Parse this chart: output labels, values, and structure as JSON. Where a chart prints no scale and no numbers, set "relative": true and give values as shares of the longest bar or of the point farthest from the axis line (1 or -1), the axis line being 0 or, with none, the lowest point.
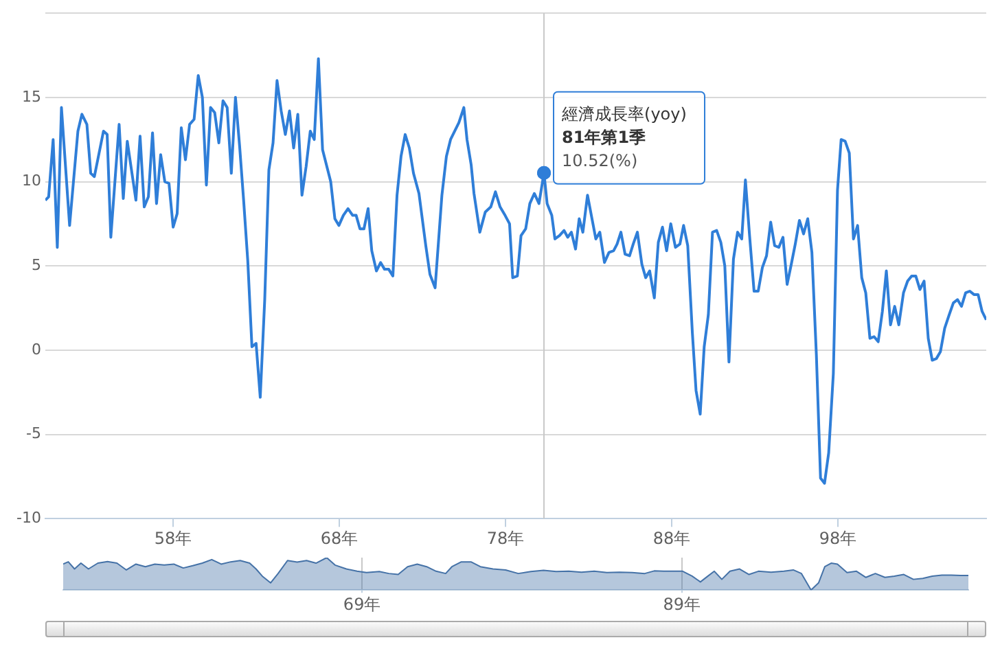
{
  "chart_data": [
    {
      "type": "line",
      "x": [
        50.31,
        50.51,
        50.78,
        51.03,
        51.28,
        51.77,
        52.27,
        52.51,
        52.81,
        53.04,
        53.26,
        53.81,
        54.03,
        54.25,
        54.75,
        55.0,
        55.24,
        55.76,
        56.01,
        56.26,
        56.51,
        56.76,
        57.0,
        57.25,
        57.5,
        57.75,
        58.0,
        58.24,
        58.49,
        58.74,
        58.99,
        59.26,
        59.51,
        59.76,
        60.0,
        60.25,
        60.5,
        60.75,
        61.0,
        61.25,
        61.5,
        61.75,
        62.0,
        62.24,
        62.49,
        62.74,
        62.99,
        63.24,
        63.51,
        63.76,
        64.01,
        64.25,
        64.5,
        64.75,
        65.0,
        65.25,
        65.5,
        65.75,
        66.0,
        66.25,
        66.49,
        66.74,
        66.99,
        67.48,
        67.73,
        67.97,
        68.24,
        68.52,
        68.8,
        69.01,
        69.24,
        69.48,
        69.73,
        69.95,
        70.23,
        70.48,
        70.72,
        70.97,
        71.22,
        71.47,
        71.71,
        71.96,
        72.21,
        72.46,
        72.79,
        73.2,
        73.45,
        73.76,
        74.17,
        74.44,
        74.69,
        74.94,
        75.19,
        75.49,
        75.68,
        75.93,
        76.1,
        76.45,
        76.78,
        77.11,
        77.39,
        77.67,
        77.97,
        78.24,
        78.43,
        78.71,
        78.93,
        79.21,
        79.46,
        79.73,
        80.01,
        80.31,
        80.5,
        80.78,
        80.97,
        81.24,
        81.52,
        81.74,
        81.96,
        82.21,
        82.43,
        82.65,
        82.93,
        83.18,
        83.43,
        83.67,
        83.95,
        84.22,
        84.5,
        84.71,
        84.94,
        85.19,
        85.46,
        85.68,
        85.93,
        86.2,
        86.43,
        86.67,
        86.95,
        87.19,
        87.44,
        87.69,
        87.94,
        88.22,
        88.49,
        88.71,
        88.96,
        89.24,
        89.46,
        89.71,
        89.95,
        90.2,
        90.45,
        90.7,
        90.95,
        91.19,
        91.44,
        91.71,
        91.96,
        92.21,
        92.43,
        92.68,
        92.95,
        93.2,
        93.45,
        93.7,
        93.95,
        94.19,
        94.44,
        94.69,
        94.94,
        95.19,
        95.43,
        95.68,
        95.93,
        96.18,
        96.43,
        96.7,
        96.95,
        97.19,
        97.44,
        97.72,
        97.97,
        98.19,
        98.43,
        98.68,
        98.93,
        99.18,
        99.43,
        99.67,
        99.92,
        100.17,
        100.42,
        100.67,
        100.91,
        101.16,
        101.41,
        101.66,
        101.94,
        102.19,
        102.43,
        102.68,
        102.93,
        103.18,
        103.43,
        103.67,
        103.92,
        104.16,
        104.42,
        104.69,
        104.94,
        105.19,
        105.43,
        105.68,
        105.93,
        106.18,
        106.43,
        106.67,
        106.92
      ],
      "series": [
        {
          "name": "經濟成長率(yoy)",
          "color": "#2f7ed8",
          "values": [
            8.9,
            9.1,
            12.5,
            6.1,
            14.4,
            7.4,
            13.0,
            14.0,
            13.4,
            10.5,
            10.3,
            13.0,
            12.8,
            6.7,
            13.4,
            9.0,
            12.4,
            8.9,
            12.7,
            8.5,
            9.1,
            12.9,
            8.7,
            11.6,
            10.0,
            9.9,
            7.3,
            8.1,
            13.2,
            11.3,
            13.4,
            13.7,
            16.3,
            15.0,
            9.8,
            14.4,
            14.1,
            12.3,
            14.8,
            14.4,
            10.5,
            15.0,
            12.1,
            8.9,
            5.3,
            0.2,
            0.4,
            -2.8,
            3.0,
            10.7,
            12.3,
            16.0,
            14.2,
            12.8,
            14.2,
            12.0,
            14.0,
            9.2,
            10.9,
            13.0,
            12.5,
            17.3,
            11.9,
            10.0,
            7.8,
            7.4,
            8.0,
            8.4,
            8.0,
            8.0,
            7.2,
            7.2,
            8.4,
            5.9,
            4.7,
            5.2,
            4.8,
            4.8,
            4.4,
            9.2,
            11.5,
            12.8,
            12.0,
            10.5,
            9.3,
            6.2,
            4.5,
            3.7,
            9.2,
            11.5,
            12.5,
            13.0,
            13.5,
            14.4,
            12.5,
            11.0,
            9.3,
            7.0,
            8.2,
            8.5,
            9.4,
            8.5,
            8.0,
            7.5,
            4.3,
            4.4,
            6.8,
            7.2,
            8.7,
            9.3,
            8.7,
            10.52,
            8.7,
            8.0,
            6.6,
            6.8,
            7.1,
            6.7,
            7.0,
            6.0,
            7.8,
            7.0,
            9.2,
            7.9,
            6.6,
            7.0,
            5.2,
            5.8,
            5.9,
            6.3,
            7.0,
            5.7,
            5.6,
            6.3,
            7.0,
            5.1,
            4.3,
            4.7,
            3.1,
            6.4,
            7.3,
            5.9,
            7.5,
            6.1,
            6.3,
            7.4,
            6.2,
            1.0,
            -2.4,
            -3.8,
            0.2,
            2.1,
            7.0,
            7.1,
            6.4,
            5.0,
            -0.7,
            5.4,
            7.0,
            6.6,
            10.1,
            6.8,
            3.5,
            3.5,
            4.9,
            5.6,
            7.6,
            6.2,
            6.1,
            6.7,
            3.9,
            5.1,
            6.3,
            7.7,
            6.9,
            7.8,
            5.8,
            -0.3,
            -7.6,
            -7.9,
            -6.1,
            -1.4,
            9.5,
            12.5,
            12.4,
            11.7,
            6.6,
            7.4,
            4.3,
            3.4,
            0.7,
            0.8,
            0.5,
            2.3,
            4.7,
            1.5,
            2.6,
            1.5,
            3.4,
            4.1,
            4.4,
            4.4,
            3.6,
            4.1,
            0.7,
            -0.6,
            -0.5,
            -0.1,
            1.3,
            2.1,
            2.8,
            3.0,
            2.6,
            3.4,
            3.5,
            3.3,
            3.3,
            2.3,
            1.8
          ]
        }
      ],
      "xlim": [
        50.31,
        106.92
      ],
      "xticks": [
        {
          "value": 58,
          "label": "58年"
        },
        {
          "value": 68,
          "label": "68年"
        },
        {
          "value": 78,
          "label": "78年"
        },
        {
          "value": 88,
          "label": "88年"
        },
        {
          "value": 98,
          "label": "98年"
        }
      ],
      "ylim": [
        -10,
        20
      ],
      "yticks": [
        -10,
        -5,
        0,
        5,
        10,
        15,
        {
          "value": 20,
          "label": null
        }
      ],
      "grid": "y",
      "marker": "none",
      "ref_lines": [
        {
          "axis": "x",
          "value": 80.31,
          "color": "#c8c8c8"
        }
      ],
      "annotations": [
        {
          "text": "81年第1季",
          "x": 80.31,
          "y": 10.52
        },
        {
          "text": "10.52(%)",
          "x": 80.31,
          "y": 10.52
        }
      ]
    },
    {
      "type": "area",
      "relative": true,
      "x": [
        50.31,
        50.63,
        51.02,
        51.42,
        51.89,
        52.48,
        53.08,
        53.67,
        54.26,
        54.86,
        55.45,
        56.04,
        56.63,
        57.23,
        57.82,
        58.41,
        59.01,
        59.6,
        60.19,
        60.79,
        61.38,
        61.97,
        62.37,
        62.76,
        63.28,
        63.75,
        64.34,
        64.94,
        65.53,
        66.12,
        66.79,
        67.31,
        68.02,
        68.69,
        69.28,
        70.08,
        70.67,
        71.26,
        71.85,
        72.45,
        73.04,
        73.63,
        74.23,
        74.62,
        75.21,
        75.81,
        76.4,
        77.19,
        77.98,
        78.77,
        79.56,
        80.35,
        81.14,
        81.93,
        82.72,
        83.52,
        84.31,
        85.1,
        85.89,
        86.68,
        87.27,
        87.87,
        88.46,
        89.05,
        89.64,
        90.16,
        90.63,
        91.03,
        91.5,
        92.01,
        92.61,
        93.2,
        93.79,
        94.58,
        95.38,
        95.97,
        96.48,
        97.08,
        97.55,
        97.94,
        98.34,
        98.73,
        99.33,
        99.92,
        100.51,
        101.1,
        101.7,
        102.29,
        102.88,
        103.48,
        104.07,
        104.66,
        105.26,
        105.85,
        106.44,
        106.92
      ],
      "series": [
        {
          "color": "#4572a7",
          "values": [
            0.8,
            0.87,
            0.65,
            0.83,
            0.65,
            0.83,
            0.88,
            0.83,
            0.62,
            0.8,
            0.72,
            0.8,
            0.77,
            0.8,
            0.68,
            0.75,
            0.83,
            0.94,
            0.8,
            0.87,
            0.91,
            0.83,
            0.65,
            0.43,
            0.22,
            0.51,
            0.91,
            0.86,
            0.91,
            0.83,
            1.0,
            0.77,
            0.65,
            0.58,
            0.54,
            0.57,
            0.51,
            0.48,
            0.72,
            0.8,
            0.72,
            0.58,
            0.51,
            0.72,
            0.87,
            0.87,
            0.72,
            0.65,
            0.62,
            0.51,
            0.57,
            0.61,
            0.57,
            0.58,
            0.55,
            0.58,
            0.54,
            0.55,
            0.54,
            0.51,
            0.59,
            0.58,
            0.58,
            0.58,
            0.43,
            0.25,
            0.43,
            0.58,
            0.33,
            0.58,
            0.65,
            0.48,
            0.58,
            0.55,
            0.58,
            0.62,
            0.51,
            0.0,
            0.22,
            0.72,
            0.83,
            0.8,
            0.54,
            0.58,
            0.39,
            0.51,
            0.39,
            0.43,
            0.48,
            0.33,
            0.36,
            0.43,
            0.46,
            0.46,
            0.45,
            0.45
          ]
        }
      ],
      "xlim": [
        50.31,
        106.92
      ],
      "xticks": [
        {
          "value": 69,
          "label": "69年"
        },
        {
          "value": 89,
          "label": "89年"
        }
      ],
      "grid": "x"
    }
  ]
}
